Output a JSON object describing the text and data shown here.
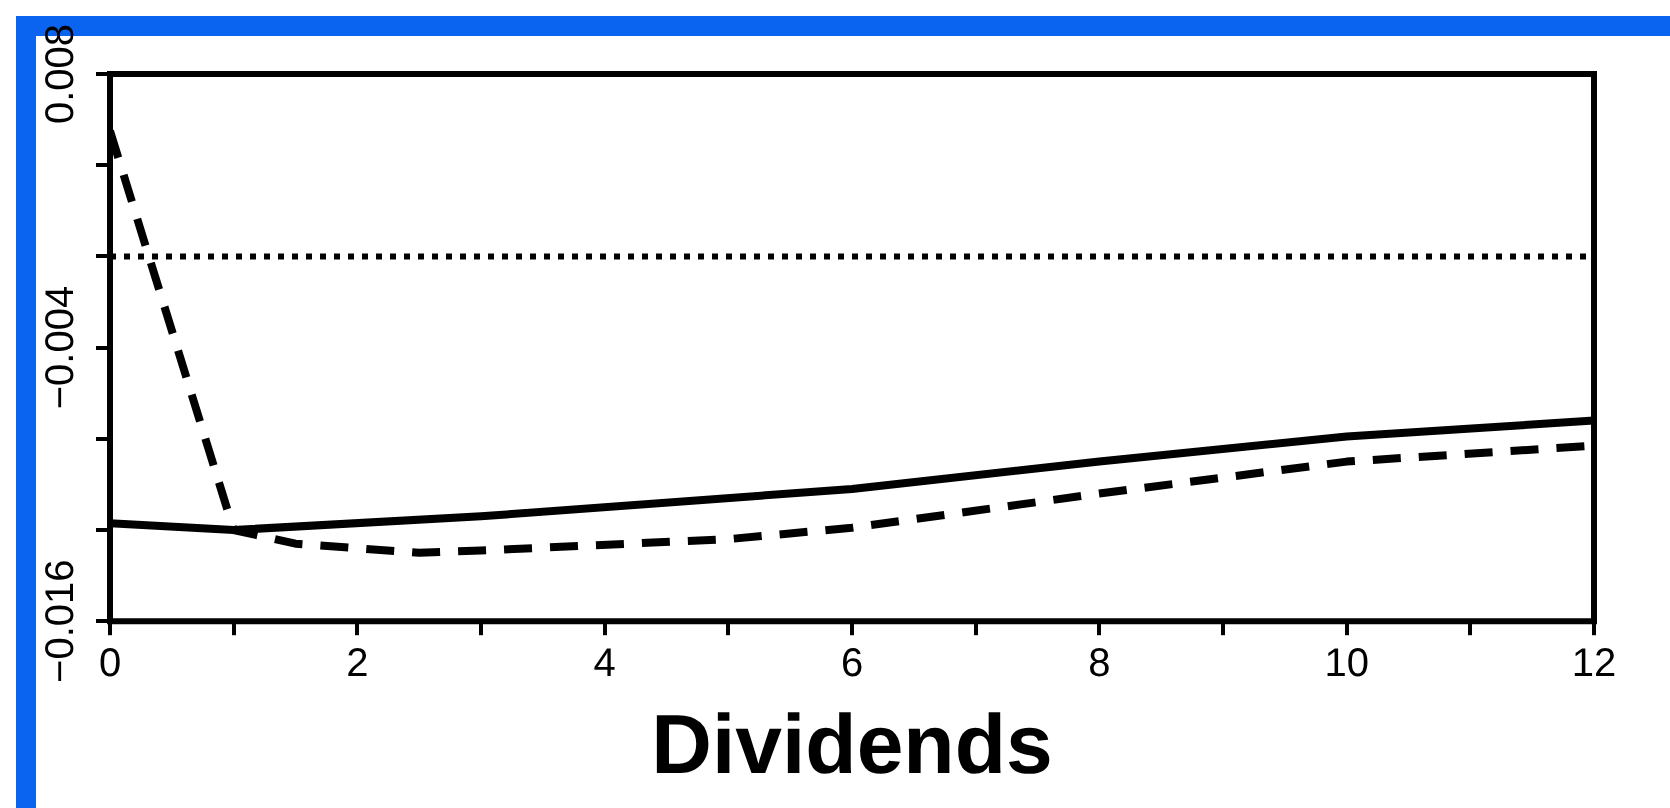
{
  "chart_data": {
    "type": "line",
    "xlabel": "Dividends",
    "x": [
      0,
      1,
      1.5,
      2.5,
      3,
      5,
      6,
      8,
      10,
      12
    ],
    "series": [
      {
        "color": "#000000",
        "line_style": "solid",
        "x": [
          0,
          1,
          3,
          6,
          8,
          10,
          12
        ],
        "values": [
          -0.0117,
          -0.012,
          -0.0114,
          -0.0102,
          -0.009,
          -0.0079,
          -0.0072
        ]
      },
      {
        "color": "#000000",
        "line_style": "dashed",
        "values": [
          0.0055,
          -0.012,
          -0.0126,
          -0.013,
          -0.0129,
          -0.0124,
          -0.0119,
          -0.0104,
          -0.009,
          -0.0083
        ]
      }
    ],
    "xlim": [
      0,
      12
    ],
    "xticks": [
      0,
      {
        "value": 1,
        "label": null
      },
      2,
      {
        "value": 3,
        "label": null
      },
      4,
      {
        "value": 5,
        "label": null
      },
      6,
      {
        "value": 7,
        "label": null
      },
      8,
      {
        "value": 9,
        "label": null
      },
      10,
      {
        "value": 11,
        "label": null
      },
      12
    ],
    "ylim": [
      -0.016,
      0.008
    ],
    "yticks": [
      {
        "value": -0.016,
        "label": "−0.016"
      },
      {
        "value": -0.012,
        "label": null
      },
      {
        "value": -0.008,
        "label": null
      },
      {
        "value": -0.004,
        "label": "−0.004"
      },
      {
        "value": 0,
        "label": null
      },
      {
        "value": 0.004,
        "label": null
      },
      0.008
    ],
    "ref_lines": [
      {
        "axis": "y",
        "value": 0,
        "line_style": "dotted",
        "color": "#000000"
      }
    ],
    "grid": false,
    "legend": false
  }
}
